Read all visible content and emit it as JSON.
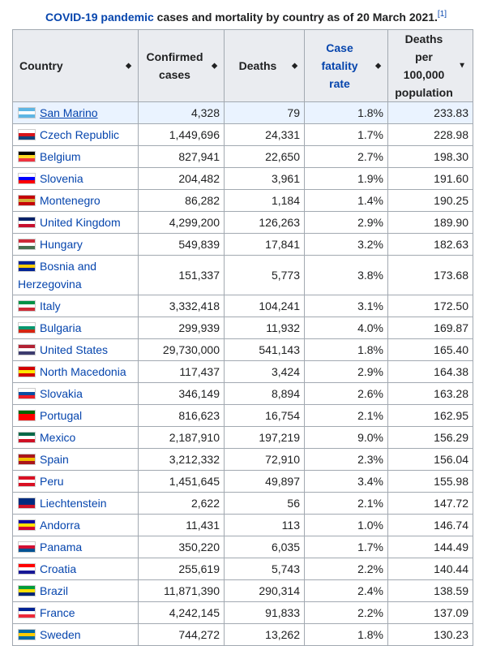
{
  "caption": {
    "link_text": "COVID-19 pandemic",
    "rest": " cases and mortality by country as of 20 March 2021.",
    "ref": "[1]"
  },
  "columns": [
    {
      "label": "Country"
    },
    {
      "label": "Confirmed cases"
    },
    {
      "label": "Deaths"
    },
    {
      "label": "Case fatality rate"
    },
    {
      "label": "Deaths per 100,000 population"
    }
  ],
  "rows": [
    {
      "country": "San Marino",
      "cases": "4,328",
      "deaths": "79",
      "cfr": "1.8%",
      "per100k": "233.83",
      "flag": [
        "#5eb6e4",
        "#fff",
        "#5eb6e4"
      ]
    },
    {
      "country": "Czech Republic",
      "cases": "1,449,696",
      "deaths": "24,331",
      "cfr": "1.7%",
      "per100k": "228.98",
      "flag": [
        "#fff",
        "#d7141a",
        "#11457e"
      ]
    },
    {
      "country": "Belgium",
      "cases": "827,941",
      "deaths": "22,650",
      "cfr": "2.7%",
      "per100k": "198.30",
      "flag": [
        "#000",
        "#fdda24",
        "#ef3340"
      ]
    },
    {
      "country": "Slovenia",
      "cases": "204,482",
      "deaths": "3,961",
      "cfr": "1.9%",
      "per100k": "191.60",
      "flag": [
        "#fff",
        "#0000ff",
        "#ff0000"
      ]
    },
    {
      "country": "Montenegro",
      "cases": "86,282",
      "deaths": "1,184",
      "cfr": "1.4%",
      "per100k": "190.25",
      "flag": [
        "#c40308",
        "#d3ae3b",
        "#c40308"
      ]
    },
    {
      "country": "United Kingdom",
      "cases": "4,299,200",
      "deaths": "126,263",
      "cfr": "2.9%",
      "per100k": "189.90",
      "flag": [
        "#012169",
        "#fff",
        "#c8102e"
      ]
    },
    {
      "country": "Hungary",
      "cases": "549,839",
      "deaths": "17,841",
      "cfr": "3.2%",
      "per100k": "182.63",
      "flag": [
        "#ce2939",
        "#fff",
        "#477050"
      ]
    },
    {
      "country": "Bosnia and Herzegovina",
      "cases": "151,337",
      "deaths": "5,773",
      "cfr": "3.8%",
      "per100k": "173.68",
      "flag": [
        "#002395",
        "#fecb00",
        "#002395"
      ]
    },
    {
      "country": "Italy",
      "cases": "3,332,418",
      "deaths": "104,241",
      "cfr": "3.1%",
      "per100k": "172.50",
      "flag": [
        "#009246",
        "#fff",
        "#ce2b37"
      ]
    },
    {
      "country": "Bulgaria",
      "cases": "299,939",
      "deaths": "11,932",
      "cfr": "4.0%",
      "per100k": "169.87",
      "flag": [
        "#fff",
        "#00966e",
        "#d62612"
      ]
    },
    {
      "country": "United States",
      "cases": "29,730,000",
      "deaths": "541,143",
      "cfr": "1.8%",
      "per100k": "165.40",
      "flag": [
        "#b22234",
        "#fff",
        "#3c3b6e"
      ]
    },
    {
      "country": "North Macedonia",
      "cases": "117,437",
      "deaths": "3,424",
      "cfr": "2.9%",
      "per100k": "164.38",
      "flag": [
        "#d20000",
        "#ffe600",
        "#d20000"
      ]
    },
    {
      "country": "Slovakia",
      "cases": "346,149",
      "deaths": "8,894",
      "cfr": "2.6%",
      "per100k": "163.28",
      "flag": [
        "#fff",
        "#0b4ea2",
        "#ee1c25"
      ]
    },
    {
      "country": "Portugal",
      "cases": "816,623",
      "deaths": "16,754",
      "cfr": "2.1%",
      "per100k": "162.95",
      "flag": [
        "#006600",
        "#ff0000",
        "#ff0000"
      ]
    },
    {
      "country": "Mexico",
      "cases": "2,187,910",
      "deaths": "197,219",
      "cfr": "9.0%",
      "per100k": "156.29",
      "flag": [
        "#006847",
        "#fff",
        "#ce1126"
      ]
    },
    {
      "country": "Spain",
      "cases": "3,212,332",
      "deaths": "72,910",
      "cfr": "2.3%",
      "per100k": "156.04",
      "flag": [
        "#aa151b",
        "#f1bf00",
        "#aa151b"
      ]
    },
    {
      "country": "Peru",
      "cases": "1,451,645",
      "deaths": "49,897",
      "cfr": "3.4%",
      "per100k": "155.98",
      "flag": [
        "#d91023",
        "#fff",
        "#d91023"
      ]
    },
    {
      "country": "Liechtenstein",
      "cases": "2,622",
      "deaths": "56",
      "cfr": "2.1%",
      "per100k": "147.72",
      "flag": [
        "#002b7f",
        "#002b7f",
        "#ce1126"
      ]
    },
    {
      "country": "Andorra",
      "cases": "11,431",
      "deaths": "113",
      "cfr": "1.0%",
      "per100k": "146.74",
      "flag": [
        "#10069f",
        "#fedf00",
        "#d50032"
      ]
    },
    {
      "country": "Panama",
      "cases": "350,220",
      "deaths": "6,035",
      "cfr": "1.7%",
      "per100k": "144.49",
      "flag": [
        "#fff",
        "#d21034",
        "#005293"
      ]
    },
    {
      "country": "Croatia",
      "cases": "255,619",
      "deaths": "5,743",
      "cfr": "2.2%",
      "per100k": "140.44",
      "flag": [
        "#ff0000",
        "#fff",
        "#171796"
      ]
    },
    {
      "country": "Brazil",
      "cases": "11,871,390",
      "deaths": "290,314",
      "cfr": "2.4%",
      "per100k": "138.59",
      "flag": [
        "#009c3b",
        "#ffdf00",
        "#002776"
      ]
    },
    {
      "country": "France",
      "cases": "4,242,145",
      "deaths": "91,833",
      "cfr": "2.2%",
      "per100k": "137.09",
      "flag": [
        "#002395",
        "#fff",
        "#ed2939"
      ]
    },
    {
      "country": "Sweden",
      "cases": "744,272",
      "deaths": "13,262",
      "cfr": "1.8%",
      "per100k": "130.23",
      "flag": [
        "#006aa7",
        "#fecc00",
        "#006aa7"
      ]
    }
  ]
}
